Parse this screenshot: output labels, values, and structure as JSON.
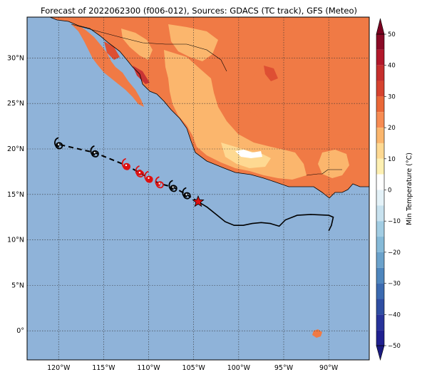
{
  "title": "Forecast of 2022062300 (f006-012), Sources: GDACS (TC track), GFS (Meteo)",
  "map": {
    "ocean_color": "#8fb3d9",
    "lon_ticks": [
      -120,
      -115,
      -110,
      -105,
      -100,
      -95,
      -90
    ],
    "lon_labels": [
      "120°W",
      "115°W",
      "110°W",
      "105°W",
      "100°W",
      "95°W",
      "90°W"
    ],
    "lat_ticks": [
      0,
      5,
      10,
      15,
      20,
      25,
      30
    ],
    "lat_labels": [
      "0°",
      "5°N",
      "10°N",
      "15°N",
      "20°N",
      "25°N",
      "30°N"
    ],
    "extent": {
      "lon_min": -123.5,
      "lon_max": -85.5,
      "lat_min": -3.2,
      "lat_max": 34.5
    }
  },
  "track": {
    "past_observed": [
      [
        -104.5,
        14.2
      ],
      [
        -103.5,
        13.6
      ],
      [
        -102.5,
        12.8
      ],
      [
        -101.5,
        12.0
      ],
      [
        -100.5,
        11.6
      ],
      [
        -99.5,
        11.6
      ],
      [
        -98.5,
        11.8
      ],
      [
        -97.5,
        11.9
      ],
      [
        -96.5,
        11.8
      ],
      [
        -95.5,
        11.5
      ],
      [
        -94.8,
        12.2
      ],
      [
        -93.5,
        12.7
      ],
      [
        -92.0,
        12.8
      ],
      [
        -90.0,
        12.7
      ],
      [
        -89.5,
        12.5
      ],
      [
        -89.7,
        11.6
      ],
      [
        -90.0,
        11.0
      ]
    ],
    "current_position": [
      -104.5,
      14.2
    ],
    "forecast": [
      [
        -104.5,
        14.2
      ],
      [
        -105.8,
        15.0
      ],
      [
        -107.3,
        15.8
      ],
      [
        -108.8,
        16.2
      ],
      [
        -110.0,
        16.8
      ],
      [
        -111.0,
        17.4
      ],
      [
        -112.5,
        18.2
      ],
      [
        -116.0,
        19.6
      ],
      [
        -120.0,
        20.5
      ]
    ],
    "forecast_icons_black": [
      [
        -105.8,
        15.0
      ],
      [
        -107.3,
        15.8
      ],
      [
        -116.0,
        19.6
      ],
      [
        -120.0,
        20.5
      ]
    ],
    "forecast_icons_red": [
      [
        -108.8,
        16.2
      ],
      [
        -110.0,
        16.8
      ],
      [
        -111.0,
        17.4
      ],
      [
        -112.5,
        18.2
      ]
    ],
    "red_points": [
      [
        -109.9,
        16.7
      ],
      [
        -111.0,
        17.4
      ],
      [
        -112.4,
        18.1
      ]
    ],
    "track_color": "#000000",
    "highlight_color": "#dd1111"
  },
  "colorbar": {
    "label": "Min Temperature (°C)",
    "ticks": [
      50,
      40,
      30,
      20,
      10,
      0,
      -10,
      -20,
      -30,
      -40,
      -50
    ],
    "bins": [
      {
        "from": 45,
        "to": 50,
        "color": "#8a0a26"
      },
      {
        "from": 40,
        "to": 45,
        "color": "#b2182b"
      },
      {
        "from": 35,
        "to": 40,
        "color": "#c62f2d"
      },
      {
        "from": 30,
        "to": 35,
        "color": "#d6432f"
      },
      {
        "from": 25,
        "to": 30,
        "color": "#ea6838"
      },
      {
        "from": 20,
        "to": 25,
        "color": "#f78c53"
      },
      {
        "from": 15,
        "to": 20,
        "color": "#fbb66d"
      },
      {
        "from": 10,
        "to": 15,
        "color": "#fed992"
      },
      {
        "from": 5,
        "to": 10,
        "color": "#fef0b2"
      },
      {
        "from": 0,
        "to": 5,
        "color": "#ffffff"
      },
      {
        "from": -5,
        "to": 0,
        "color": "#e4f2f8"
      },
      {
        "from": -10,
        "to": -5,
        "color": "#c8e2ef"
      },
      {
        "from": -15,
        "to": -10,
        "color": "#a2cde3"
      },
      {
        "from": -20,
        "to": -15,
        "color": "#86bad8"
      },
      {
        "from": -25,
        "to": -20,
        "color": "#6ba2cb"
      },
      {
        "from": -30,
        "to": -25,
        "color": "#4e86bd"
      },
      {
        "from": -35,
        "to": -30,
        "color": "#3b6ab0"
      },
      {
        "from": -40,
        "to": -35,
        "color": "#2f4ea2"
      },
      {
        "from": -45,
        "to": -40,
        "color": "#27339a"
      },
      {
        "from": -50,
        "to": -45,
        "color": "#202090"
      }
    ],
    "over_color": "#7a0020",
    "under_color": "#1a1a80"
  },
  "land_colors": {
    "cool": "#fbb66d",
    "warm": "#f07a45",
    "hot": "#de4f33",
    "very_hot": "#c83434",
    "mild": "#fed992",
    "cold": "#ffffff"
  }
}
